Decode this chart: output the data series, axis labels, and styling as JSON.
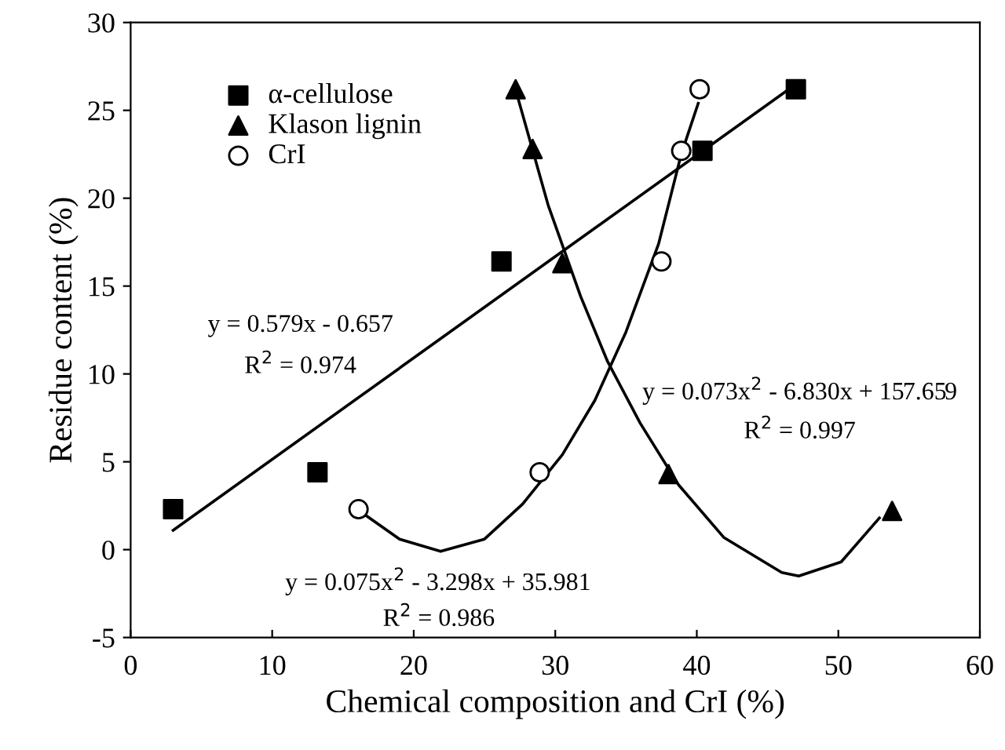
{
  "chart_data": {
    "type": "scatter",
    "xlabel": "Chemical composition and CrI (%)",
    "ylabel": "Residue content (%)",
    "xlim": [
      0,
      60
    ],
    "xticks": [
      0,
      10,
      20,
      30,
      40,
      50,
      60
    ],
    "ylim": [
      -5,
      30
    ],
    "yticks": [
      -5,
      0,
      5,
      10,
      15,
      20,
      25,
      30
    ],
    "grid": false,
    "legend": "top left",
    "series": [
      {
        "name": "α-cellulose",
        "marker": "square",
        "color": "#000000",
        "x": [
          3.0,
          13.2,
          26.2,
          40.4,
          47.0
        ],
        "values": [
          2.3,
          4.4,
          16.4,
          22.7,
          26.2
        ]
      },
      {
        "name": "Klason lignin",
        "marker": "triangle",
        "color": "#000000",
        "x": [
          27.2,
          28.4,
          30.5,
          38.0,
          53.8
        ],
        "values": [
          26.2,
          22.8,
          16.3,
          4.3,
          2.2
        ]
      },
      {
        "name": "CrI",
        "marker": "circle",
        "color": "#000000",
        "x": [
          16.1,
          28.9,
          37.5,
          38.9,
          40.2
        ],
        "values": [
          2.3,
          4.4,
          16.4,
          22.7,
          26.2
        ]
      },
      {
        "type": "line",
        "marker": "none",
        "line_style": "solid",
        "color": "#000000",
        "x": [
          3.0,
          46.5
        ],
        "values": [
          1.1,
          26.2
        ]
      },
      {
        "type": "line",
        "marker": "none",
        "line_style": "solid",
        "color": "#000000",
        "x": [
          16.7,
          19,
          21.9,
          25,
          27.7,
          30.5,
          32.8,
          35,
          37.3,
          38.9,
          40.1
        ],
        "values": [
          1.9,
          0.6,
          -0.1,
          0.6,
          2.6,
          5.4,
          8.5,
          12.4,
          17.4,
          22.5,
          25.4
        ]
      },
      {
        "type": "line",
        "marker": "none",
        "line_style": "solid",
        "color": "#000000",
        "x": [
          27.4,
          29.5,
          31.8,
          33.7,
          36,
          38.7,
          41.9,
          46,
          47.2,
          50.2,
          52.9
        ],
        "values": [
          25.6,
          19.6,
          14.4,
          10.7,
          7.2,
          3.7,
          0.7,
          -1.3,
          -1.5,
          -0.7,
          1.8
        ]
      }
    ],
    "annotations": [
      "y = 0.579x - 0.657",
      "R$^{2}$ = 0.974",
      "y = 0.073x$^{2}$ - 6.830x + 157.659",
      "R$^{2}$ = 0.997",
      "y = 0.075x$^{2}$ - 3.298x + 35.981",
      "R$^{2}$ = 0.986"
    ]
  }
}
